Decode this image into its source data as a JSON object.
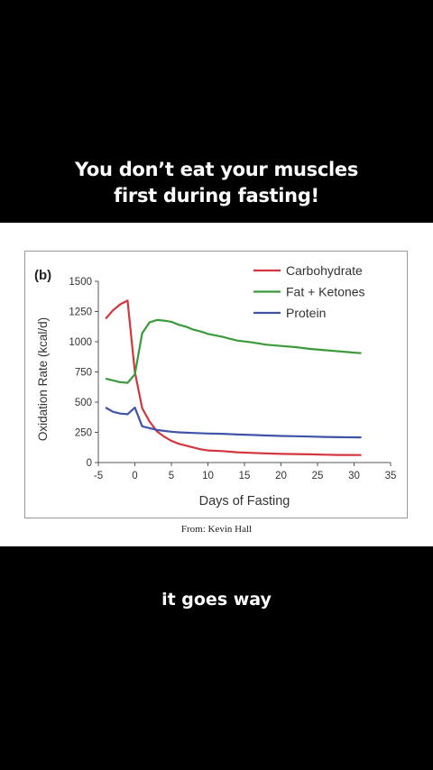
{
  "headline": {
    "line1": "You don’t eat your muscles",
    "line2": "first during fasting!"
  },
  "credit": "From: Kevin Hall",
  "caption": "it goes way",
  "chart_data": {
    "type": "line",
    "panel_label": "(b)",
    "xlabel": "Days of Fasting",
    "ylabel": "Oxidation Rate (kcal/d)",
    "xlim": [
      -5,
      35
    ],
    "ylim": [
      0,
      1500
    ],
    "xticks": [
      -5,
      0,
      5,
      10,
      15,
      20,
      25,
      30,
      35
    ],
    "yticks": [
      0,
      250,
      500,
      750,
      1000,
      1250,
      1500
    ],
    "legend_position": "top-right",
    "grid": false,
    "series": [
      {
        "name": "Carbohydrate",
        "color": "#d3363e",
        "points": [
          [
            -4,
            1190
          ],
          [
            -3,
            1260
          ],
          [
            -2,
            1310
          ],
          [
            -1,
            1340
          ],
          [
            0,
            750
          ],
          [
            1,
            450
          ],
          [
            2,
            340
          ],
          [
            3,
            260
          ],
          [
            4,
            215
          ],
          [
            5,
            180
          ],
          [
            6,
            155
          ],
          [
            7,
            140
          ],
          [
            8,
            125
          ],
          [
            9,
            110
          ],
          [
            10,
            100
          ],
          [
            12,
            95
          ],
          [
            14,
            85
          ],
          [
            16,
            80
          ],
          [
            18,
            75
          ],
          [
            20,
            72
          ],
          [
            22,
            70
          ],
          [
            24,
            68
          ],
          [
            26,
            65
          ],
          [
            28,
            63
          ],
          [
            31,
            62
          ]
        ]
      },
      {
        "name": "Fat + Ketones",
        "color": "#3b9a3b",
        "points": [
          [
            -4,
            695
          ],
          [
            -3,
            680
          ],
          [
            -2,
            665
          ],
          [
            -1,
            660
          ],
          [
            0,
            730
          ],
          [
            1,
            1070
          ],
          [
            2,
            1160
          ],
          [
            3,
            1180
          ],
          [
            4,
            1175
          ],
          [
            5,
            1165
          ],
          [
            6,
            1140
          ],
          [
            7,
            1125
          ],
          [
            8,
            1100
          ],
          [
            9,
            1085
          ],
          [
            10,
            1065
          ],
          [
            12,
            1040
          ],
          [
            14,
            1010
          ],
          [
            16,
            995
          ],
          [
            18,
            975
          ],
          [
            20,
            965
          ],
          [
            22,
            955
          ],
          [
            24,
            940
          ],
          [
            26,
            930
          ],
          [
            28,
            920
          ],
          [
            30,
            910
          ],
          [
            31,
            905
          ]
        ]
      },
      {
        "name": "Protein",
        "color": "#3f54a8",
        "points": [
          [
            -4,
            455
          ],
          [
            -3,
            420
          ],
          [
            -2,
            405
          ],
          [
            -1,
            400
          ],
          [
            0,
            455
          ],
          [
            1,
            300
          ],
          [
            2,
            285
          ],
          [
            3,
            270
          ],
          [
            4,
            262
          ],
          [
            5,
            255
          ],
          [
            6,
            250
          ],
          [
            8,
            245
          ],
          [
            10,
            240
          ],
          [
            12,
            238
          ],
          [
            14,
            232
          ],
          [
            16,
            228
          ],
          [
            18,
            224
          ],
          [
            20,
            220
          ],
          [
            22,
            218
          ],
          [
            24,
            215
          ],
          [
            26,
            212
          ],
          [
            28,
            210
          ],
          [
            31,
            208
          ]
        ]
      }
    ]
  }
}
